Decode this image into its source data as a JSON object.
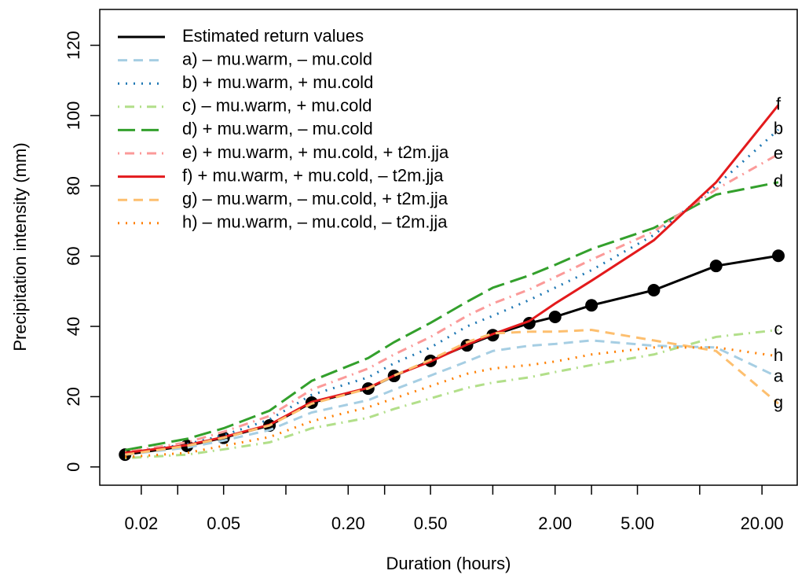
{
  "chart_data": {
    "type": "line",
    "x_label": "Duration (hours)",
    "y_label": "Precipitation intensity (mm)",
    "xlog": true,
    "xlim": [
      0.0126,
      29.6
    ],
    "ylim": [
      -5.2,
      130.2
    ],
    "xticks": [
      0.02,
      0.05,
      {
        "value": 0.2,
        "label": "0.20"
      },
      {
        "value": 0.5,
        "label": "0.50"
      },
      {
        "value": 2,
        "label": "2.00"
      },
      {
        "value": 5,
        "label": "5.00"
      },
      {
        "value": 20,
        "label": "20.00"
      }
    ],
    "xminor_ticks": [
      0.03,
      0.1,
      0.3,
      1,
      3,
      10
    ],
    "yticks": [
      0,
      20,
      40,
      60,
      80,
      100,
      120
    ],
    "x": [
      0.0167,
      0.0333,
      0.05,
      0.0833,
      0.1333,
      0.25,
      0.3333,
      0.5,
      0.75,
      1,
      1.5,
      2,
      3,
      6,
      12,
      24
    ],
    "series": [
      {
        "name": "Estimated return values",
        "color": "#000000",
        "style": "solid",
        "markers": true,
        "values": [
          3.5,
          6,
          8.3,
          11.8,
          18.3,
          22.3,
          25.9,
          30.2,
          34.6,
          37.5,
          40.9,
          42.7,
          46,
          50.3,
          57.2,
          60.1
        ]
      },
      {
        "name": "a) – mu.warm, – mu.cold",
        "color": "#a6cee3",
        "style": "dashed",
        "end_label": "a",
        "values": [
          3.5,
          5.5,
          7.5,
          10.5,
          15.5,
          19,
          22,
          26,
          30,
          33,
          34.5,
          35,
          36,
          34.5,
          34,
          25.5
        ]
      },
      {
        "name": "b) + mu.warm, + mu.cold",
        "color": "#1f78b4",
        "style": "dotted",
        "end_label": "b",
        "values": [
          4,
          6.5,
          9,
          13.5,
          20.5,
          25.5,
          29.5,
          34,
          40,
          43,
          47.5,
          51,
          56,
          66,
          80,
          96
        ]
      },
      {
        "name": "c) – mu.warm, + mu.cold",
        "color": "#b2df8a",
        "style": "dotdash",
        "end_label": "c",
        "values": [
          2.5,
          3.5,
          5,
          7,
          11,
          14,
          16.5,
          19.5,
          22.5,
          24,
          25.5,
          27,
          29,
          32,
          37,
          39
        ]
      },
      {
        "name": "d) + mu.warm, – mu.cold",
        "color": "#33a02c",
        "style": "longdash",
        "end_label": "d",
        "values": [
          4.8,
          8,
          11,
          16,
          24.5,
          31,
          35.5,
          41,
          47,
          51,
          54.5,
          57.5,
          62,
          68,
          77.5,
          81
        ]
      },
      {
        "name": "e) + mu.warm, + mu.cold, + t2m.jja",
        "color": "#fb9a99",
        "style": "dotdash",
        "end_label": "e",
        "values": [
          4.2,
          7,
          10,
          14.5,
          22,
          28,
          32,
          37,
          43,
          46.5,
          50.5,
          54,
          59,
          67,
          79,
          89
        ]
      },
      {
        "name": "f) + mu.warm, + mu.cold, – t2m.jja",
        "color": "#e31a1c",
        "style": "solid",
        "end_label": "f",
        "values": [
          4,
          6.2,
          8.5,
          12,
          18.5,
          22.5,
          26,
          30,
          34.8,
          37.8,
          41.5,
          46.5,
          53,
          64.5,
          81,
          103
        ]
      },
      {
        "name": "g) – mu.warm, – mu.cold, + t2m.jja",
        "color": "#fdbf6f",
        "style": "dashed",
        "end_label": "g",
        "values": [
          3.5,
          6,
          8.3,
          11.8,
          18,
          22.3,
          26,
          30.5,
          35.5,
          38,
          38.5,
          38.5,
          39,
          36,
          33,
          18
        ]
      },
      {
        "name": "h) – mu.warm, – mu.cold, – t2m.jja",
        "color": "#ff7f00",
        "style": "dotted",
        "end_label": "h",
        "values": [
          2.8,
          4,
          6,
          8.5,
          13,
          17,
          19.5,
          23,
          26.5,
          28,
          29,
          30,
          32,
          34,
          34,
          31.5
        ]
      }
    ],
    "legend": "top-left"
  }
}
